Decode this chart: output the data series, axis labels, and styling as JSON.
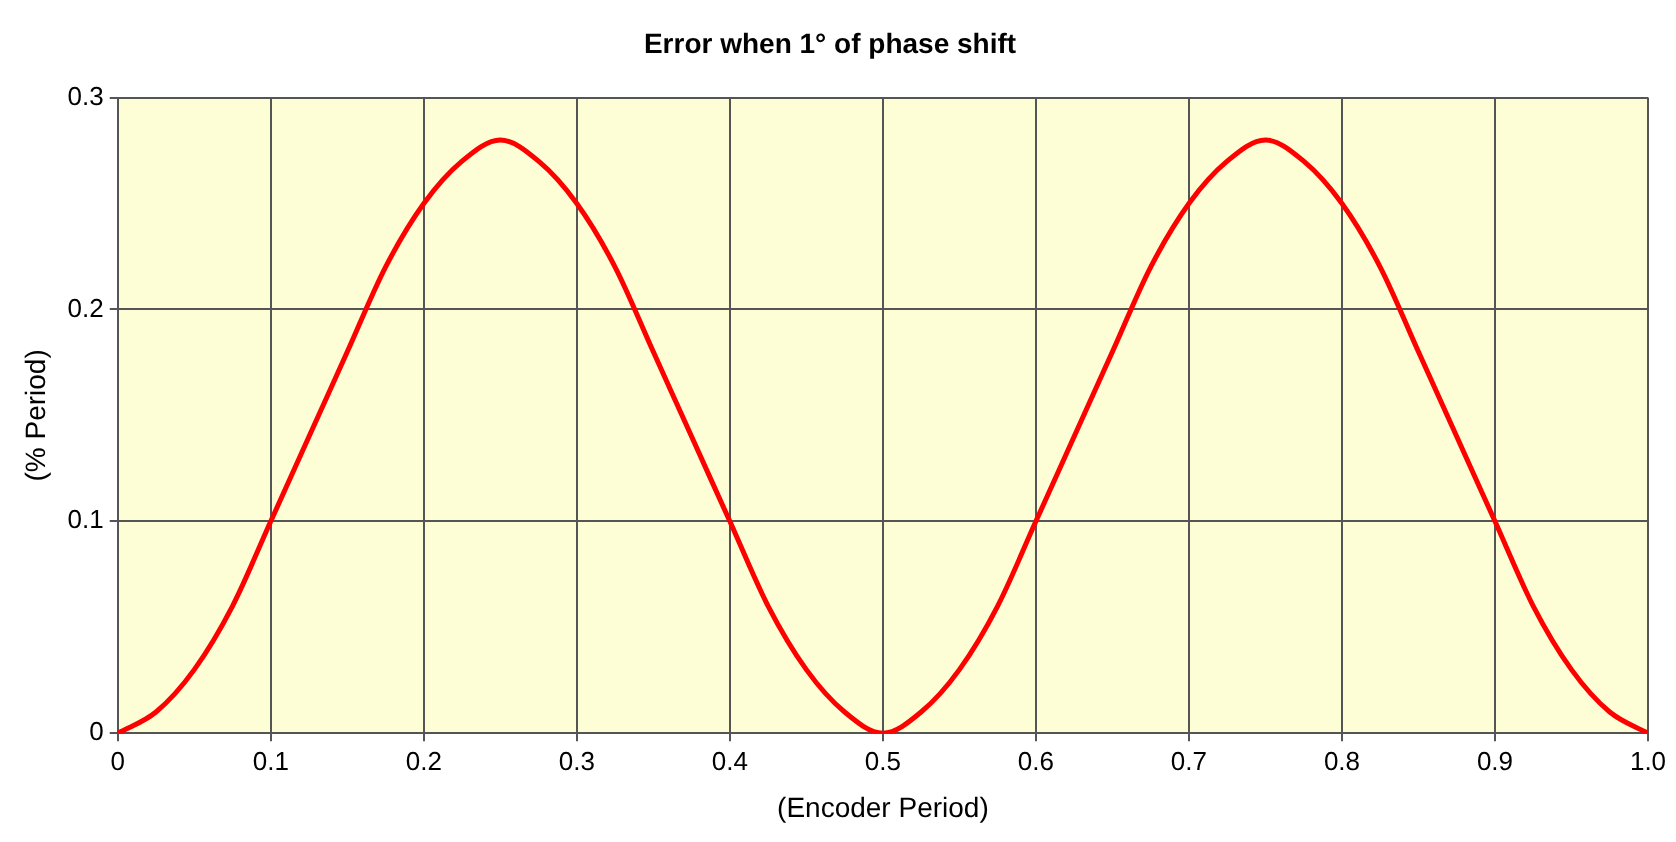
{
  "chart_data": {
    "type": "line",
    "title": "Error when 1° of phase shift",
    "xlabel": "(Encoder Period)",
    "ylabel": "(% Period)",
    "x": [
      0,
      0.025,
      0.05,
      0.075,
      0.1,
      0.125,
      0.15,
      0.175,
      0.2,
      0.225,
      0.25,
      0.275,
      0.3,
      0.325,
      0.35,
      0.375,
      0.4,
      0.425,
      0.45,
      0.475,
      0.5,
      0.525,
      0.55,
      0.575,
      0.6,
      0.625,
      0.65,
      0.675,
      0.7,
      0.725,
      0.75,
      0.775,
      0.8,
      0.825,
      0.85,
      0.875,
      0.9,
      0.925,
      0.95,
      0.975,
      1
    ],
    "series": [
      {
        "color": "#ff0000",
        "values": [
          0,
          0.01,
          0.03,
          0.06,
          0.1,
          0.14,
          0.18,
          0.22,
          0.25,
          0.27,
          0.28,
          0.27,
          0.25,
          0.22,
          0.18,
          0.14,
          0.1,
          0.06,
          0.03,
          0.01,
          0,
          0.01,
          0.03,
          0.06,
          0.1,
          0.14,
          0.18,
          0.22,
          0.25,
          0.27,
          0.28,
          0.27,
          0.25,
          0.22,
          0.18,
          0.14,
          0.1,
          0.06,
          0.03,
          0.01,
          0
        ]
      }
    ],
    "xlim": [
      0,
      1
    ],
    "xticks": [
      0,
      0.1,
      0.2,
      0.3,
      0.4,
      0.5,
      0.6,
      0.7,
      0.8,
      0.9,
      {
        "value": 1,
        "label": "1.0"
      }
    ],
    "ylim": [
      0,
      0.3
    ],
    "yticks": [
      0,
      0.1,
      0.2,
      0.3
    ],
    "grid": true,
    "legend": false,
    "marker": "none",
    "line_style": "solid"
  }
}
